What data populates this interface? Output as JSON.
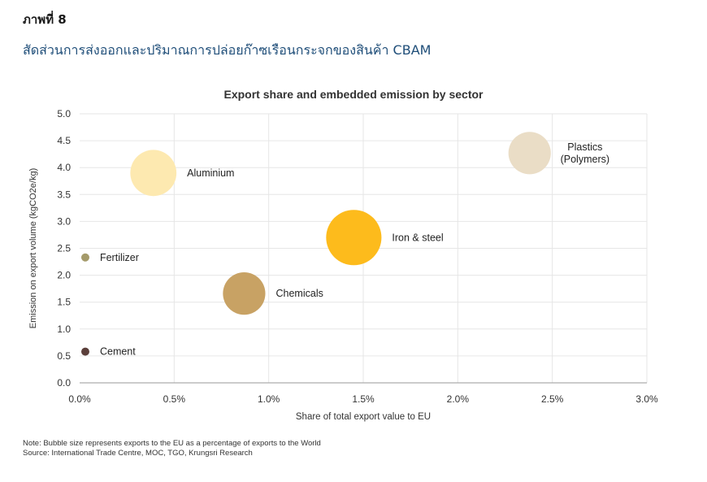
{
  "figure_label": "ภาพที่ 8",
  "figure_title": "สัดส่วนการส่งออกและปริมาณการปล่อยก๊าซเรือนกระจกของสินค้า CBAM",
  "chart_data": {
    "type": "bubble",
    "title": "Export share and embedded emission by sector",
    "xlabel": "Share of total export value to EU",
    "ylabel": "Emission on export volume (kgCO2e/kg)",
    "xlim": [
      0,
      0.03
    ],
    "ylim": [
      0,
      5
    ],
    "x_ticks": [
      "0.0%",
      "0.5%",
      "1.0%",
      "1.5%",
      "2.0%",
      "2.5%",
      "3.0%"
    ],
    "y_ticks": [
      "0.0",
      "0.5",
      "1.0",
      "1.5",
      "2.0",
      "2.5",
      "3.0",
      "3.5",
      "4.0",
      "4.5",
      "5.0"
    ],
    "grid": true,
    "points": [
      {
        "name": "Cement",
        "x": 0.0003,
        "y": 0.58,
        "size": 0.3,
        "color": "#5b3f3a",
        "label": [
          "Cement"
        ]
      },
      {
        "name": "Fertilizer",
        "x": 0.0003,
        "y": 2.33,
        "size": 0.4,
        "color": "#a49a6a",
        "label": [
          "Fertilizer"
        ]
      },
      {
        "name": "Aluminium",
        "x": 0.0039,
        "y": 3.9,
        "size": 16,
        "color": "#fde9b0",
        "label": [
          "Aluminium"
        ]
      },
      {
        "name": "Chemicals",
        "x": 0.0087,
        "y": 1.66,
        "size": 13.5,
        "color": "#c8a264",
        "label": [
          "Chemicals"
        ]
      },
      {
        "name": "Iron & steel",
        "x": 0.0145,
        "y": 2.7,
        "size": 23,
        "color": "#fdbb1c",
        "label": [
          "Iron & steel"
        ]
      },
      {
        "name": "Plastics (Polymers)",
        "x": 0.0238,
        "y": 4.27,
        "size": 13.5,
        "color": "#eaddc6",
        "label": [
          "Plastics",
          "(Polymers)"
        ]
      }
    ]
  },
  "notes": {
    "note": "Note: Bubble size represents exports to the EU as a percentage of exports to the World",
    "source": "Source: International Trade Centre, MOC, TGO, Krungsri Research"
  }
}
